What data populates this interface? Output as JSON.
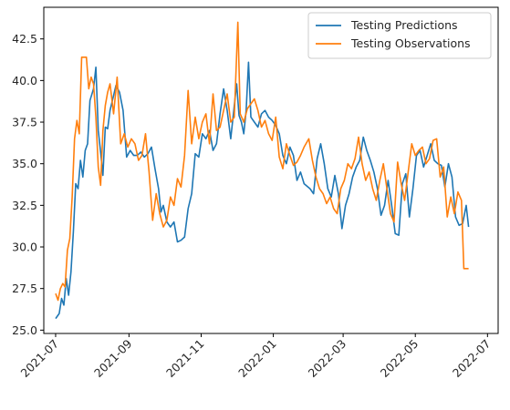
{
  "chart_data": {
    "type": "line",
    "title": "",
    "xlabel": "",
    "ylabel": "",
    "xlim": [
      "2021-06-21",
      "2022-07-10"
    ],
    "ylim": [
      24.8,
      44.4
    ],
    "grid": false,
    "legend_position": "top-right",
    "x_ticks": [
      "2021-07",
      "2021-09",
      "2021-11",
      "2022-01",
      "2022-03",
      "2022-05",
      "2022-07"
    ],
    "y_ticks": [
      "25.0",
      "27.5",
      "30.0",
      "32.5",
      "35.0",
      "37.5",
      "40.0",
      "42.5"
    ],
    "series": [
      {
        "name": "Testing Predictions",
        "color": "#1f77b4",
        "points": [
          [
            "2021-07-01",
            25.7
          ],
          [
            "2021-07-04",
            26.0
          ],
          [
            "2021-07-06",
            26.9
          ],
          [
            "2021-07-08",
            26.5
          ],
          [
            "2021-07-10",
            28.1
          ],
          [
            "2021-07-12",
            27.1
          ],
          [
            "2021-07-14",
            28.5
          ],
          [
            "2021-07-16",
            30.9
          ],
          [
            "2021-07-18",
            33.8
          ],
          [
            "2021-07-20",
            33.5
          ],
          [
            "2021-07-22",
            35.2
          ],
          [
            "2021-07-24",
            34.2
          ],
          [
            "2021-07-26",
            35.8
          ],
          [
            "2021-07-28",
            36.2
          ],
          [
            "2021-07-30",
            38.8
          ],
          [
            "2021-08-02",
            39.5
          ],
          [
            "2021-08-04",
            40.8
          ],
          [
            "2021-08-06",
            37.0
          ],
          [
            "2021-08-08",
            35.7
          ],
          [
            "2021-08-10",
            34.3
          ],
          [
            "2021-08-12",
            37.2
          ],
          [
            "2021-08-14",
            37.1
          ],
          [
            "2021-08-16",
            38.2
          ],
          [
            "2021-08-18",
            38.8
          ],
          [
            "2021-08-21",
            39.7
          ],
          [
            "2021-08-24",
            39.3
          ],
          [
            "2021-08-27",
            38.2
          ],
          [
            "2021-08-30",
            35.4
          ],
          [
            "2021-09-02",
            35.8
          ],
          [
            "2021-09-05",
            35.5
          ],
          [
            "2021-09-08",
            35.5
          ],
          [
            "2021-09-11",
            35.7
          ],
          [
            "2021-09-14",
            35.4
          ],
          [
            "2021-09-17",
            35.6
          ],
          [
            "2021-09-20",
            36.0
          ],
          [
            "2021-09-23",
            34.7
          ],
          [
            "2021-09-26",
            33.5
          ],
          [
            "2021-09-28",
            32.1
          ],
          [
            "2021-09-30",
            32.5
          ],
          [
            "2021-10-03",
            31.5
          ],
          [
            "2021-10-06",
            31.2
          ],
          [
            "2021-10-09",
            31.5
          ],
          [
            "2021-10-12",
            30.3
          ],
          [
            "2021-10-15",
            30.4
          ],
          [
            "2021-10-18",
            30.6
          ],
          [
            "2021-10-21",
            32.3
          ],
          [
            "2021-10-24",
            33.2
          ],
          [
            "2021-10-27",
            35.6
          ],
          [
            "2021-10-30",
            35.4
          ],
          [
            "2021-11-02",
            36.8
          ],
          [
            "2021-11-05",
            36.5
          ],
          [
            "2021-11-08",
            37.0
          ],
          [
            "2021-11-11",
            35.8
          ],
          [
            "2021-11-14",
            36.2
          ],
          [
            "2021-11-17",
            38.0
          ],
          [
            "2021-11-20",
            39.5
          ],
          [
            "2021-11-23",
            38.2
          ],
          [
            "2021-11-26",
            36.5
          ],
          [
            "2021-11-29",
            38.5
          ],
          [
            "2021-12-01",
            39.8
          ],
          [
            "2021-12-03",
            37.9
          ],
          [
            "2021-12-05",
            37.5
          ],
          [
            "2021-12-07",
            36.8
          ],
          [
            "2021-12-09",
            38.2
          ],
          [
            "2021-12-11",
            41.1
          ],
          [
            "2021-12-13",
            37.8
          ],
          [
            "2021-12-16",
            37.5
          ],
          [
            "2021-12-19",
            37.2
          ],
          [
            "2021-12-22",
            38.0
          ],
          [
            "2021-12-25",
            38.2
          ],
          [
            "2021-12-28",
            37.8
          ],
          [
            "2021-12-31",
            37.6
          ],
          [
            "2022-01-03",
            37.3
          ],
          [
            "2022-01-06",
            36.8
          ],
          [
            "2022-01-09",
            35.5
          ],
          [
            "2022-01-12",
            35.0
          ],
          [
            "2022-01-15",
            36.0
          ],
          [
            "2022-01-18",
            35.5
          ],
          [
            "2022-01-21",
            34.0
          ],
          [
            "2022-01-24",
            34.5
          ],
          [
            "2022-01-27",
            33.8
          ],
          [
            "2022-02-01",
            33.5
          ],
          [
            "2022-02-04",
            33.2
          ],
          [
            "2022-02-07",
            35.3
          ],
          [
            "2022-02-10",
            36.2
          ],
          [
            "2022-02-13",
            35.0
          ],
          [
            "2022-02-16",
            33.5
          ],
          [
            "2022-02-19",
            33.0
          ],
          [
            "2022-02-22",
            34.3
          ],
          [
            "2022-02-25",
            33.2
          ],
          [
            "2022-02-28",
            31.1
          ],
          [
            "2022-03-03",
            32.5
          ],
          [
            "2022-03-06",
            33.2
          ],
          [
            "2022-03-09",
            34.2
          ],
          [
            "2022-03-12",
            34.8
          ],
          [
            "2022-03-15",
            35.2
          ],
          [
            "2022-03-18",
            36.6
          ],
          [
            "2022-03-21",
            35.8
          ],
          [
            "2022-03-24",
            35.2
          ],
          [
            "2022-03-27",
            34.5
          ],
          [
            "2022-03-30",
            33.5
          ],
          [
            "2022-04-02",
            31.9
          ],
          [
            "2022-04-05",
            32.5
          ],
          [
            "2022-04-08",
            34.0
          ],
          [
            "2022-04-11",
            32.5
          ],
          [
            "2022-04-14",
            30.8
          ],
          [
            "2022-04-17",
            30.7
          ],
          [
            "2022-04-20",
            33.8
          ],
          [
            "2022-04-23",
            34.4
          ],
          [
            "2022-04-26",
            31.8
          ],
          [
            "2022-04-29",
            33.5
          ],
          [
            "2022-05-02",
            35.5
          ],
          [
            "2022-05-05",
            35.8
          ],
          [
            "2022-05-08",
            34.8
          ],
          [
            "2022-05-11",
            35.5
          ],
          [
            "2022-05-14",
            36.2
          ],
          [
            "2022-05-17",
            35.2
          ],
          [
            "2022-05-20",
            35.0
          ],
          [
            "2022-05-23",
            34.9
          ],
          [
            "2022-05-26",
            33.6
          ],
          [
            "2022-05-29",
            35.0
          ],
          [
            "2022-06-01",
            34.2
          ],
          [
            "2022-06-04",
            31.8
          ],
          [
            "2022-06-07",
            31.3
          ],
          [
            "2022-06-10",
            31.4
          ],
          [
            "2022-06-13",
            32.5
          ],
          [
            "2022-06-15",
            31.2
          ]
        ]
      },
      {
        "name": "Testing Observations",
        "color": "#ff7f0e",
        "points": [
          [
            "2021-07-01",
            27.2
          ],
          [
            "2021-07-03",
            26.8
          ],
          [
            "2021-07-05",
            27.5
          ],
          [
            "2021-07-07",
            27.8
          ],
          [
            "2021-07-09",
            27.6
          ],
          [
            "2021-07-11",
            29.8
          ],
          [
            "2021-07-13",
            30.5
          ],
          [
            "2021-07-15",
            33.0
          ],
          [
            "2021-07-17",
            36.5
          ],
          [
            "2021-07-19",
            37.6
          ],
          [
            "2021-07-21",
            36.8
          ],
          [
            "2021-07-23",
            41.4
          ],
          [
            "2021-07-25",
            41.4
          ],
          [
            "2021-07-27",
            41.4
          ],
          [
            "2021-07-29",
            39.5
          ],
          [
            "2021-07-31",
            40.2
          ],
          [
            "2021-08-02",
            39.8
          ],
          [
            "2021-08-04",
            37.8
          ],
          [
            "2021-08-06",
            34.8
          ],
          [
            "2021-08-08",
            33.7
          ],
          [
            "2021-08-10",
            37.0
          ],
          [
            "2021-08-12",
            38.5
          ],
          [
            "2021-08-14",
            39.3
          ],
          [
            "2021-08-16",
            39.8
          ],
          [
            "2021-08-19",
            38.0
          ],
          [
            "2021-08-22",
            40.2
          ],
          [
            "2021-08-25",
            36.2
          ],
          [
            "2021-08-28",
            36.8
          ],
          [
            "2021-08-31",
            36.0
          ],
          [
            "2021-09-03",
            36.5
          ],
          [
            "2021-09-06",
            36.2
          ],
          [
            "2021-09-09",
            35.2
          ],
          [
            "2021-09-12",
            35.5
          ],
          [
            "2021-09-15",
            36.8
          ],
          [
            "2021-09-18",
            34.5
          ],
          [
            "2021-09-21",
            31.6
          ],
          [
            "2021-09-24",
            33.2
          ],
          [
            "2021-09-27",
            32.0
          ],
          [
            "2021-09-30",
            31.2
          ],
          [
            "2021-10-03",
            31.6
          ],
          [
            "2021-10-06",
            33.0
          ],
          [
            "2021-10-09",
            32.5
          ],
          [
            "2021-10-12",
            34.1
          ],
          [
            "2021-10-15",
            33.6
          ],
          [
            "2021-10-18",
            35.5
          ],
          [
            "2021-10-21",
            39.4
          ],
          [
            "2021-10-24",
            36.2
          ],
          [
            "2021-10-27",
            37.8
          ],
          [
            "2021-10-30",
            36.5
          ],
          [
            "2021-11-02",
            37.5
          ],
          [
            "2021-11-05",
            38.0
          ],
          [
            "2021-11-08",
            36.2
          ],
          [
            "2021-11-11",
            39.2
          ],
          [
            "2021-11-14",
            37.0
          ],
          [
            "2021-11-17",
            37.2
          ],
          [
            "2021-11-20",
            38.2
          ],
          [
            "2021-11-23",
            39.2
          ],
          [
            "2021-11-26",
            37.5
          ],
          [
            "2021-11-29",
            37.8
          ],
          [
            "2021-12-02",
            43.5
          ],
          [
            "2021-12-04",
            38.0
          ],
          [
            "2021-12-07",
            37.5
          ],
          [
            "2021-12-10",
            38.3
          ],
          [
            "2021-12-13",
            38.6
          ],
          [
            "2021-12-16",
            38.9
          ],
          [
            "2021-12-19",
            38.2
          ],
          [
            "2021-12-22",
            37.2
          ],
          [
            "2021-12-25",
            37.6
          ],
          [
            "2021-12-28",
            36.8
          ],
          [
            "2021-12-31",
            36.4
          ],
          [
            "2022-01-03",
            37.8
          ],
          [
            "2022-01-06",
            35.4
          ],
          [
            "2022-01-09",
            34.7
          ],
          [
            "2022-01-12",
            36.2
          ],
          [
            "2022-01-15",
            35.5
          ],
          [
            "2022-01-18",
            34.9
          ],
          [
            "2022-01-21",
            35.1
          ],
          [
            "2022-01-24",
            35.5
          ],
          [
            "2022-01-27",
            36.0
          ],
          [
            "2022-01-31",
            36.5
          ],
          [
            "2022-02-03",
            35.2
          ],
          [
            "2022-02-06",
            34.2
          ],
          [
            "2022-02-09",
            33.5
          ],
          [
            "2022-02-12",
            33.2
          ],
          [
            "2022-02-15",
            32.6
          ],
          [
            "2022-02-18",
            33.0
          ],
          [
            "2022-02-21",
            32.3
          ],
          [
            "2022-02-24",
            32.0
          ],
          [
            "2022-02-27",
            33.5
          ],
          [
            "2022-03-02",
            34.0
          ],
          [
            "2022-03-05",
            35.0
          ],
          [
            "2022-03-08",
            34.7
          ],
          [
            "2022-03-11",
            35.3
          ],
          [
            "2022-03-14",
            36.6
          ],
          [
            "2022-03-17",
            35.0
          ],
          [
            "2022-03-20",
            34.0
          ],
          [
            "2022-03-23",
            34.5
          ],
          [
            "2022-03-26",
            33.5
          ],
          [
            "2022-03-29",
            32.8
          ],
          [
            "2022-04-01",
            34.0
          ],
          [
            "2022-04-04",
            35.0
          ],
          [
            "2022-04-07",
            33.5
          ],
          [
            "2022-04-10",
            32.0
          ],
          [
            "2022-04-13",
            31.5
          ],
          [
            "2022-04-16",
            35.1
          ],
          [
            "2022-04-19",
            33.8
          ],
          [
            "2022-04-22",
            32.8
          ],
          [
            "2022-04-25",
            34.5
          ],
          [
            "2022-04-28",
            36.2
          ],
          [
            "2022-05-01",
            35.5
          ],
          [
            "2022-05-04",
            35.8
          ],
          [
            "2022-05-07",
            36.0
          ],
          [
            "2022-05-10",
            35.0
          ],
          [
            "2022-05-13",
            35.3
          ],
          [
            "2022-05-16",
            36.4
          ],
          [
            "2022-05-19",
            36.5
          ],
          [
            "2022-05-22",
            34.2
          ],
          [
            "2022-05-25",
            34.8
          ],
          [
            "2022-05-28",
            31.8
          ],
          [
            "2022-05-31",
            33.0
          ],
          [
            "2022-06-03",
            32.0
          ],
          [
            "2022-06-06",
            33.3
          ],
          [
            "2022-06-09",
            32.8
          ],
          [
            "2022-06-11",
            28.7
          ],
          [
            "2022-06-15",
            28.7
          ]
        ]
      }
    ]
  }
}
